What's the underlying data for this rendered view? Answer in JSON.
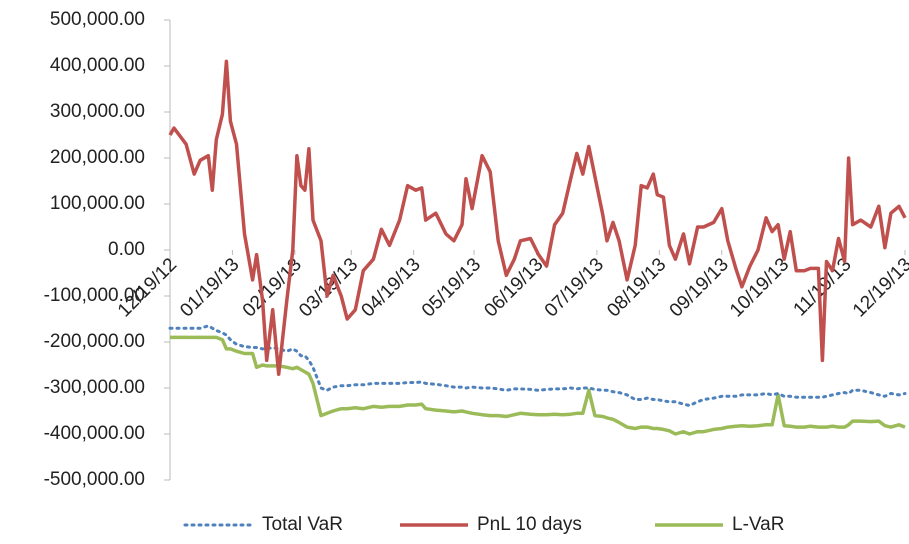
{
  "chart_data": {
    "type": "line",
    "x": [
      "12/19/12",
      "12/21/12",
      "12/27/12",
      "12/31/12",
      "01/03/13",
      "01/07/13",
      "01/09/13",
      "01/11/13",
      "01/14/13",
      "01/16/13",
      "01/18/13",
      "01/21/13",
      "01/25/13",
      "01/29/13",
      "01/31/13",
      "02/03/13",
      "02/05/13",
      "02/08/13",
      "02/11/13",
      "02/15/13",
      "02/18/13",
      "02/20/13",
      "02/22/13",
      "02/24/13",
      "02/26/13",
      "02/28/13",
      "03/04/13",
      "03/07/13",
      "03/10/13",
      "03/14/13",
      "03/17/13",
      "03/21/13",
      "03/25/13",
      "03/30/13",
      "04/03/13",
      "04/07/13",
      "04/12/13",
      "04/16/13",
      "04/20/13",
      "04/23/13",
      "04/25/13",
      "04/30/13",
      "05/05/13",
      "05/09/13",
      "05/13/13",
      "05/15/13",
      "05/18/13",
      "05/23/13",
      "05/27/13",
      "05/31/13",
      "06/04/13",
      "06/08/13",
      "06/11/13",
      "06/16/13",
      "06/20/13",
      "06/24/13",
      "06/28/13",
      "07/02/13",
      "07/06/13",
      "07/09/13",
      "07/12/13",
      "07/15/13",
      "07/18/13",
      "07/22/13",
      "07/24/13",
      "07/27/13",
      "07/30/13",
      "08/03/13",
      "08/07/13",
      "08/10/13",
      "08/13/13",
      "08/16/13",
      "08/18/13",
      "08/21/13",
      "08/24/13",
      "08/27/13",
      "08/31/13",
      "09/03/13",
      "09/07/13",
      "09/10/13",
      "09/15/13",
      "09/19/13",
      "09/22/13",
      "09/26/13",
      "09/29/13",
      "10/03/13",
      "10/07/13",
      "10/11/13",
      "10/14/13",
      "10/17/13",
      "10/20/13",
      "10/23/13",
      "10/26/13",
      "10/30/13",
      "11/02/13",
      "11/06/13",
      "11/08/13",
      "11/10/13",
      "11/13/13",
      "11/16/13",
      "11/19/13",
      "11/21/13",
      "11/23/13",
      "11/27/13",
      "12/02/13",
      "12/06/13",
      "12/09/13",
      "12/12/13",
      "12/16/13",
      "12/19/13"
    ],
    "series": [
      {
        "name": "Total VaR",
        "color": "#4f81bd",
        "dash": "dotted",
        "values": [
          -170000,
          -170000,
          -170000,
          -170000,
          -170000,
          -165000,
          -170000,
          -175000,
          -180000,
          -185000,
          -195000,
          -205000,
          -210000,
          -212000,
          -212000,
          -215000,
          -215000,
          -212000,
          -215000,
          -220000,
          -215000,
          -220000,
          -230000,
          -230000,
          -240000,
          -255000,
          -300000,
          -305000,
          -298000,
          -295000,
          -295000,
          -293000,
          -293000,
          -290000,
          -290000,
          -290000,
          -290000,
          -288000,
          -288000,
          -287000,
          -290000,
          -292000,
          -295000,
          -298000,
          -298000,
          -300000,
          -298000,
          -300000,
          -300000,
          -302000,
          -305000,
          -302000,
          -302000,
          -303000,
          -305000,
          -303000,
          -302000,
          -302000,
          -300000,
          -302000,
          -300000,
          -300000,
          -303000,
          -305000,
          -305000,
          -308000,
          -310000,
          -315000,
          -325000,
          -325000,
          -322000,
          -325000,
          -325000,
          -328000,
          -330000,
          -330000,
          -335000,
          -338000,
          -330000,
          -325000,
          -322000,
          -318000,
          -318000,
          -318000,
          -315000,
          -315000,
          -315000,
          -312000,
          -315000,
          -312000,
          -318000,
          -318000,
          -320000,
          -320000,
          -320000,
          -320000,
          -320000,
          -318000,
          -315000,
          -312000,
          -310000,
          -312000,
          -305000,
          -305000,
          -310000,
          -315000,
          -318000,
          -312000,
          -315000,
          -312000
        ]
      },
      {
        "name": "PnL 10 days",
        "color": "#c0504d",
        "dash": "solid",
        "values": [
          250000,
          265000,
          230000,
          165000,
          195000,
          205000,
          130000,
          240000,
          295000,
          410000,
          280000,
          230000,
          35000,
          -65000,
          -10000,
          -110000,
          -240000,
          -130000,
          -270000,
          -110000,
          0,
          205000,
          140000,
          130000,
          220000,
          65000,
          20000,
          -100000,
          -55000,
          -100000,
          -150000,
          -130000,
          -45000,
          -20000,
          45000,
          10000,
          65000,
          140000,
          130000,
          135000,
          65000,
          80000,
          35000,
          20000,
          55000,
          155000,
          90000,
          205000,
          170000,
          20000,
          -55000,
          -20000,
          20000,
          25000,
          -10000,
          -35000,
          55000,
          80000,
          155000,
          210000,
          165000,
          225000,
          160000,
          75000,
          20000,
          60000,
          20000,
          -65000,
          10000,
          140000,
          135000,
          165000,
          120000,
          115000,
          10000,
          -20000,
          35000,
          -30000,
          50000,
          50000,
          60000,
          90000,
          20000,
          -40000,
          -80000,
          -35000,
          0,
          70000,
          40000,
          55000,
          -20000,
          40000,
          -45000,
          -45000,
          -40000,
          -40000,
          -240000,
          -25000,
          -45000,
          25000,
          -25000,
          200000,
          55000,
          65000,
          50000,
          95000,
          5000,
          80000,
          95000,
          70000
        ]
      },
      {
        "name": "L-VaR",
        "color": "#9bbb59",
        "dash": "solid",
        "values": [
          -190000,
          -190000,
          -190000,
          -190000,
          -190000,
          -190000,
          -190000,
          -190000,
          -195000,
          -215000,
          -215000,
          -220000,
          -225000,
          -225000,
          -255000,
          -250000,
          -252000,
          -252000,
          -252000,
          -255000,
          -258000,
          -255000,
          -260000,
          -265000,
          -270000,
          -290000,
          -360000,
          -355000,
          -350000,
          -345000,
          -345000,
          -343000,
          -345000,
          -340000,
          -342000,
          -340000,
          -340000,
          -337000,
          -337000,
          -335000,
          -345000,
          -348000,
          -350000,
          -352000,
          -350000,
          -352000,
          -355000,
          -358000,
          -360000,
          -360000,
          -362000,
          -358000,
          -355000,
          -357000,
          -358000,
          -358000,
          -357000,
          -358000,
          -357000,
          -355000,
          -355000,
          -305000,
          -360000,
          -362000,
          -365000,
          -368000,
          -375000,
          -385000,
          -388000,
          -385000,
          -385000,
          -388000,
          -388000,
          -390000,
          -393000,
          -400000,
          -395000,
          -400000,
          -395000,
          -395000,
          -390000,
          -388000,
          -385000,
          -383000,
          -382000,
          -383000,
          -382000,
          -380000,
          -380000,
          -315000,
          -382000,
          -383000,
          -385000,
          -385000,
          -383000,
          -385000,
          -385000,
          -385000,
          -383000,
          -385000,
          -385000,
          -380000,
          -372000,
          -372000,
          -373000,
          -372000,
          -382000,
          -385000,
          -380000,
          -385000
        ]
      }
    ],
    "xlim": [
      "12/19/12",
      "12/19/13"
    ],
    "xticks": [
      "12/19/12",
      "01/19/13",
      "02/19/13",
      "03/19/13",
      "04/19/13",
      "05/19/13",
      "06/19/13",
      "07/19/13",
      "08/19/13",
      "09/19/13",
      "10/19/13",
      "11/19/13",
      "12/19/13"
    ],
    "ylim": [
      -500000,
      500000
    ],
    "yticks": [
      {
        "value": -500000,
        "label": "-500,000.00"
      },
      {
        "value": -400000,
        "label": "-400,000.00"
      },
      {
        "value": -300000,
        "label": "-300,000.00"
      },
      {
        "value": -200000,
        "label": "-200,000.00"
      },
      {
        "value": -100000,
        "label": "-100,000.00"
      },
      {
        "value": 0,
        "label": "0.00"
      },
      {
        "value": 100000,
        "label": "100,000.00"
      },
      {
        "value": 200000,
        "label": "200,000.00"
      },
      {
        "value": 300000,
        "label": "300,000.00"
      },
      {
        "value": 400000,
        "label": "400,000.00"
      },
      {
        "value": 500000,
        "label": "500,000.00"
      }
    ],
    "grid": false,
    "legend": "bottom"
  }
}
